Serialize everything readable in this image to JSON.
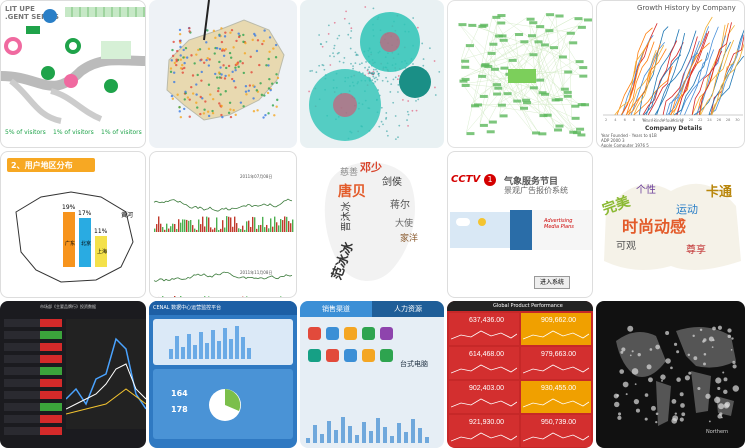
{
  "tiles": {
    "t1": {
      "header": "LIT UPE\n.GENT SERIES",
      "cats": [
        "5% of visitors",
        "1% of visitors",
        "1% of visitors"
      ]
    },
    "t5": {
      "title": "Growth History by Company",
      "ylabel": "Number of company",
      "xlabel": "Years since founding",
      "details_title": "Company Details",
      "rows": [
        [
          "Year Founded",
          "Years to $1B"
        ],
        [
          "ADP",
          "2000",
          "3"
        ],
        [
          "Apple Computer",
          "1976",
          "5"
        ]
      ],
      "xticks": [
        "2",
        "4",
        "6",
        "8",
        "10",
        "12",
        "14",
        "16",
        "18",
        "20",
        "22",
        "24",
        "26",
        "28",
        "30"
      ]
    },
    "t6": {
      "title": "2、用户地区分布",
      "bars": [
        {
          "label": "广东",
          "value": "19%",
          "color": "#f7941d"
        },
        {
          "label": "北京",
          "value": "17%",
          "color": "#29abe2"
        },
        {
          "label": "上海",
          "value": "11%",
          "color": "#f4e14a"
        }
      ],
      "region": "黄河"
    },
    "t7": {
      "top_label": "2011年07月08日",
      "bottom_label": "2011年11月08日"
    },
    "t8": {
      "words": [
        "邓少",
        "剑侯",
        "唐贝",
        "晋沐冰",
        "蒋尔",
        "范冰冰",
        "大使",
        "家洋",
        "慈善"
      ]
    },
    "t9": {
      "logo": "CCTV",
      "channel": "1",
      "title1": "气象服务节目",
      "title2": "景观广告报价系统",
      "button": "进入系统",
      "media": "Advertising Media Plans"
    },
    "t10": {
      "words": [
        "时尚动感",
        "完美",
        "可观",
        "尊享",
        "卡通",
        "运动",
        "个性"
      ]
    },
    "t11": {
      "title": "市场部《主要品牌行》投资数据"
    },
    "t12": {
      "title": "CENAL 数据中心运营监控平台",
      "val1": "164",
      "val2": "178"
    },
    "t13": {
      "tab1": "销售渠道",
      "tab2": "人力资源",
      "label": "台式电脑"
    },
    "t14": {
      "title": "Global Product Performance",
      "values": [
        "637,436.00",
        "909,662.00",
        "614,468.00",
        "979,663.00",
        "902,403.00",
        "930,455.00",
        "921,930.00",
        "950,739.00"
      ]
    },
    "t15": {
      "label": "Northern"
    }
  },
  "colors": {
    "accent_green": "#1fa34a",
    "accent_red": "#e02020",
    "accent_blue": "#2a7fc7",
    "teal": "#2ec4b6"
  }
}
